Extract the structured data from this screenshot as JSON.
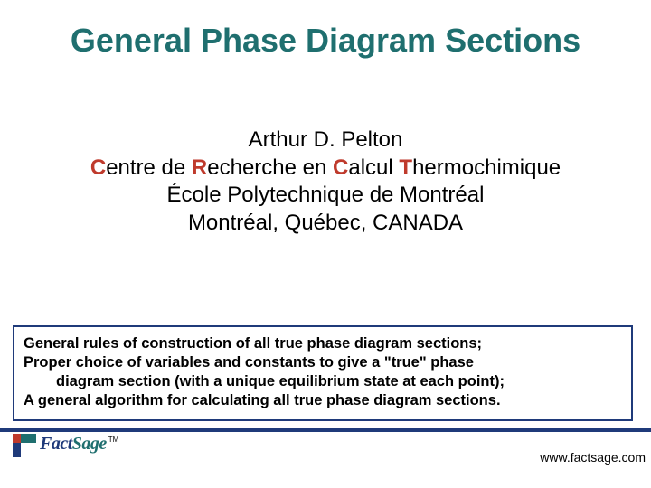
{
  "colors": {
    "title": "#1f6f6f",
    "body_text": "#000000",
    "accent_red": "#bf3a2c",
    "box_border": "#1f3a7a",
    "box_text": "#000000",
    "footer_line": "#1f3a7a",
    "logo_teal": "#1f6f6f",
    "logo_red": "#bf3a2c",
    "logo_navy": "#1f3a7a",
    "url": "#000000",
    "background": "#ffffff"
  },
  "typography": {
    "title_fontsize": 36,
    "author_fontsize": 24,
    "box_fontsize": 16.5,
    "url_fontsize": 14,
    "logo_fontsize": 20
  },
  "title": "General Phase Diagram Sections",
  "author": {
    "name": "Arthur D. Pelton",
    "org_line": {
      "c1": "C",
      "w1": "entre de ",
      "c2": "R",
      "w2": "echerche en ",
      "c3": "C",
      "w3": "alcul ",
      "c4": "T",
      "w4": "hermochimique"
    },
    "school": "École Polytechnique de Montréal",
    "location": "Montréal, Québec, CANADA"
  },
  "box": {
    "l1": "General rules of construction of all true phase diagram sections;",
    "l2": "Proper choice of variables and constants to give a \"true\" phase",
    "l3": "diagram section (with a unique equilibrium state at each point);",
    "l4": "A general algorithm for calculating all true phase diagram sections."
  },
  "logo": {
    "part1": "Fact",
    "part2": "Sage",
    "tm": "TM"
  },
  "url": "www.factsage.com"
}
